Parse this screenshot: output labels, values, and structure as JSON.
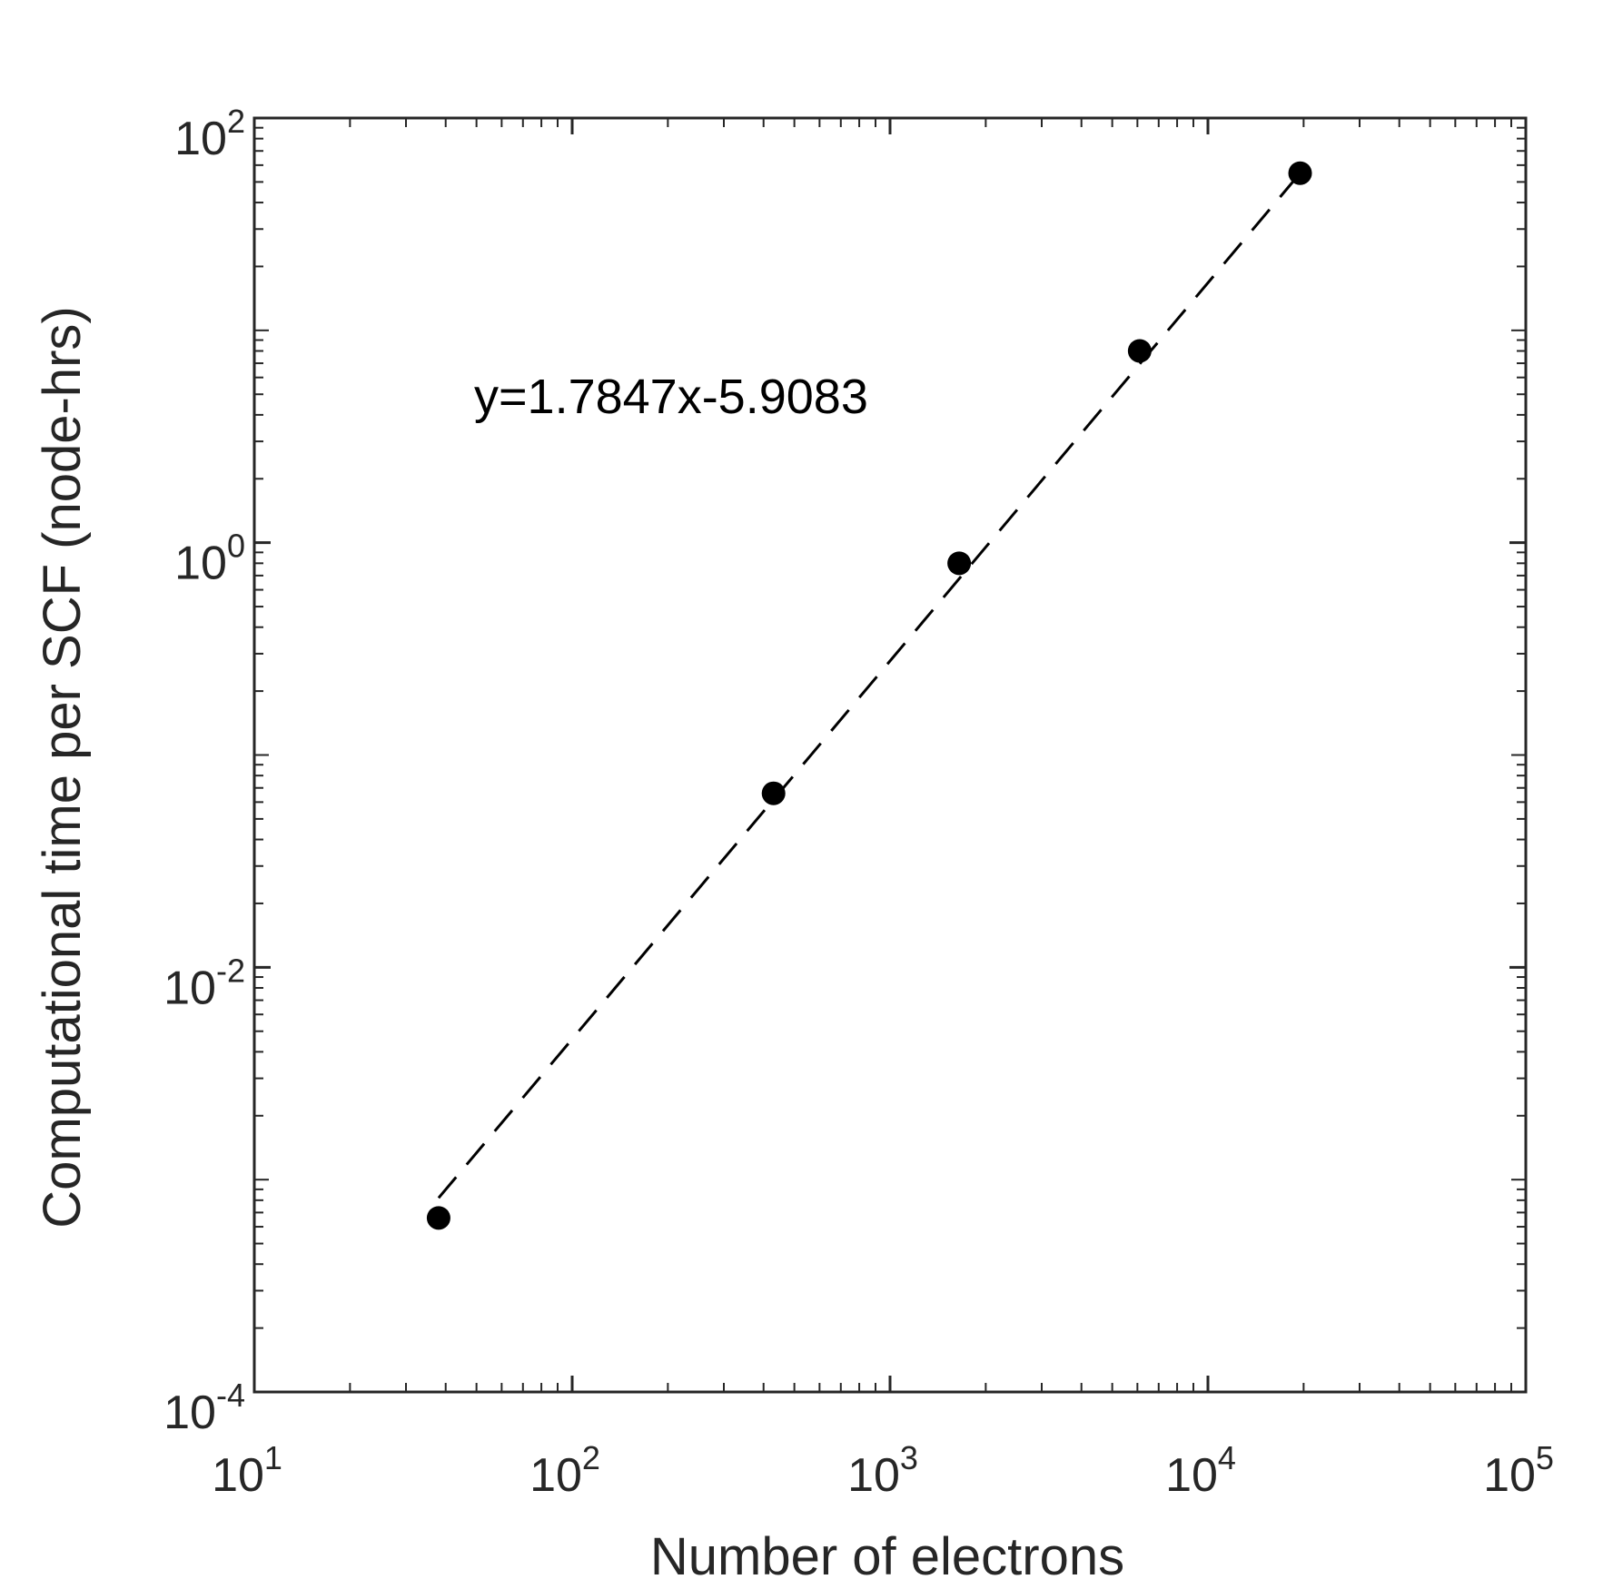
{
  "chart_data": {
    "type": "scatter",
    "title": "",
    "xlabel": "Number of electrons",
    "ylabel": "Computational time per SCF (node-hrs)",
    "xscale": "log",
    "yscale": "log",
    "xlim": [
      10,
      100000
    ],
    "ylim": [
      0.0001,
      100
    ],
    "grid": false,
    "legend": "none",
    "x_ticks": [
      {
        "value": 10,
        "base": "10",
        "exp": "1"
      },
      {
        "value": 100,
        "base": "10",
        "exp": "2"
      },
      {
        "value": 1000,
        "base": "10",
        "exp": "3"
      },
      {
        "value": 10000,
        "base": "10",
        "exp": "4"
      },
      {
        "value": 100000,
        "base": "10",
        "exp": "5"
      }
    ],
    "y_ticks": [
      {
        "value": 0.0001,
        "base": "10",
        "exp": "-4"
      },
      {
        "value": 0.01,
        "base": "10",
        "exp": "-2"
      },
      {
        "value": 1,
        "base": "10",
        "exp": "0"
      },
      {
        "value": 100,
        "base": "10",
        "exp": "2"
      }
    ],
    "series": [
      {
        "type": "scatter",
        "color": "#000000",
        "x": [
          38,
          430,
          1650,
          6100,
          19500
        ],
        "y": [
          0.00066,
          0.066,
          0.8,
          8.0,
          55
        ]
      }
    ],
    "fit_line": {
      "style": "dashed",
      "color": "#000000",
      "x": [
        38,
        19500
      ],
      "y": [
        0.00082,
        55
      ]
    },
    "annotation": "y=1.7847x-5.9083"
  }
}
